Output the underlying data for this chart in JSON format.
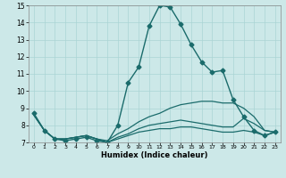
{
  "title": "",
  "xlabel": "Humidex (Indice chaleur)",
  "ylabel": "",
  "bg_color": "#cce8e8",
  "line_color": "#1a6b6b",
  "grid_color": "#aad4d4",
  "xlim": [
    -0.5,
    23.5
  ],
  "ylim": [
    7,
    15
  ],
  "xticks": [
    0,
    1,
    2,
    3,
    4,
    5,
    6,
    7,
    8,
    9,
    10,
    11,
    12,
    13,
    14,
    15,
    16,
    17,
    18,
    19,
    20,
    21,
    22,
    23
  ],
  "yticks": [
    7,
    8,
    9,
    10,
    11,
    12,
    13,
    14,
    15
  ],
  "lines": [
    {
      "x": [
        0,
        1,
        2,
        3,
        4,
        5,
        6,
        7,
        8,
        9,
        10,
        11,
        12,
        13,
        14,
        15,
        16,
        17,
        18,
        19,
        20,
        21,
        22,
        23
      ],
      "y": [
        8.7,
        7.7,
        7.2,
        7.1,
        7.2,
        7.3,
        7.1,
        7.0,
        8.0,
        10.5,
        11.4,
        13.8,
        15.0,
        14.9,
        13.9,
        12.7,
        11.7,
        11.1,
        11.2,
        9.5,
        8.5,
        7.7,
        7.4,
        7.6
      ],
      "marker": "D",
      "markersize": 2.5,
      "linewidth": 1.0
    },
    {
      "x": [
        0,
        1,
        2,
        3,
        4,
        5,
        6,
        7,
        8,
        9,
        10,
        11,
        12,
        13,
        14,
        15,
        16,
        17,
        18,
        19,
        20,
        21,
        22,
        23
      ],
      "y": [
        8.6,
        7.7,
        7.2,
        7.2,
        7.3,
        7.4,
        7.2,
        7.1,
        7.5,
        7.8,
        8.2,
        8.5,
        8.7,
        9.0,
        9.2,
        9.3,
        9.4,
        9.4,
        9.3,
        9.3,
        9.0,
        8.5,
        7.7,
        7.6
      ],
      "marker": null,
      "markersize": 0,
      "linewidth": 0.9
    },
    {
      "x": [
        0,
        1,
        2,
        3,
        4,
        5,
        6,
        7,
        8,
        9,
        10,
        11,
        12,
        13,
        14,
        15,
        16,
        17,
        18,
        19,
        20,
        21,
        22,
        23
      ],
      "y": [
        8.6,
        7.7,
        7.2,
        7.2,
        7.3,
        7.4,
        7.2,
        7.0,
        7.3,
        7.5,
        7.8,
        8.0,
        8.1,
        8.2,
        8.3,
        8.2,
        8.1,
        8.0,
        7.9,
        7.9,
        8.4,
        8.1,
        7.7,
        7.6
      ],
      "marker": null,
      "markersize": 0,
      "linewidth": 0.9
    },
    {
      "x": [
        0,
        1,
        2,
        3,
        4,
        5,
        6,
        7,
        8,
        9,
        10,
        11,
        12,
        13,
        14,
        15,
        16,
        17,
        18,
        19,
        20,
        21,
        22,
        23
      ],
      "y": [
        8.6,
        7.7,
        7.2,
        7.2,
        7.3,
        7.4,
        7.2,
        7.0,
        7.2,
        7.4,
        7.6,
        7.7,
        7.8,
        7.8,
        7.9,
        7.9,
        7.8,
        7.7,
        7.6,
        7.6,
        7.7,
        7.6,
        7.4,
        7.6
      ],
      "marker": null,
      "markersize": 0,
      "linewidth": 0.9
    }
  ]
}
